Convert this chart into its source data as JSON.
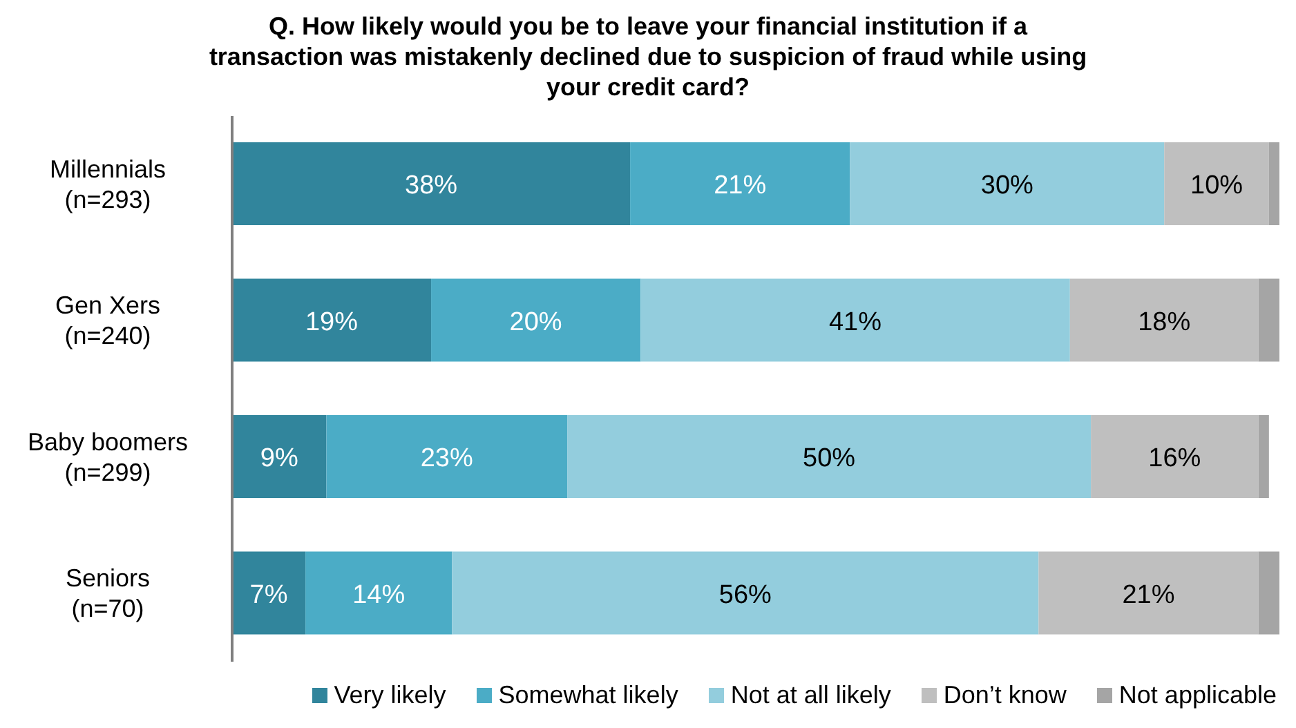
{
  "chart_data": {
    "type": "bar",
    "orientation": "horizontal",
    "stacked": true,
    "title": "Q. How likely would you be to leave your financial institution if a transaction was mistakenly declined due to suspicion of fraud while using your credit card?",
    "categories": [
      "Millennials\n(n=293)",
      "Gen Xers\n(n=240)",
      "Baby boomers\n(n=299)",
      "Seniors\n(n=70)"
    ],
    "series": [
      {
        "name": "Very likely",
        "color": "#31859c",
        "values": [
          38,
          19,
          9,
          7
        ],
        "value_labels": [
          "38%",
          "19%",
          "9%",
          "7%"
        ]
      },
      {
        "name": "Somewhat likely",
        "color": "#4bacc6",
        "values": [
          21,
          20,
          23,
          14
        ],
        "value_labels": [
          "21%",
          "20%",
          "23%",
          "14%"
        ]
      },
      {
        "name": "Not at all likely",
        "color": "#93cddd",
        "values": [
          30,
          41,
          50,
          56
        ],
        "value_labels": [
          "30%",
          "41%",
          "50%",
          "56%"
        ]
      },
      {
        "name": "Don’t know",
        "color": "#bfbfbf",
        "values": [
          10,
          18,
          16,
          21
        ],
        "value_labels": [
          "10%",
          "18%",
          "16%",
          "21%"
        ]
      },
      {
        "name": "Not applicable",
        "color": "#a5a5a5",
        "values": [
          1,
          2,
          1,
          2
        ],
        "value_labels": [
          null,
          null,
          null,
          null
        ]
      }
    ],
    "xlim": [
      0,
      100
    ],
    "tick_labels": "y",
    "grid": false,
    "legend": "bottom"
  }
}
